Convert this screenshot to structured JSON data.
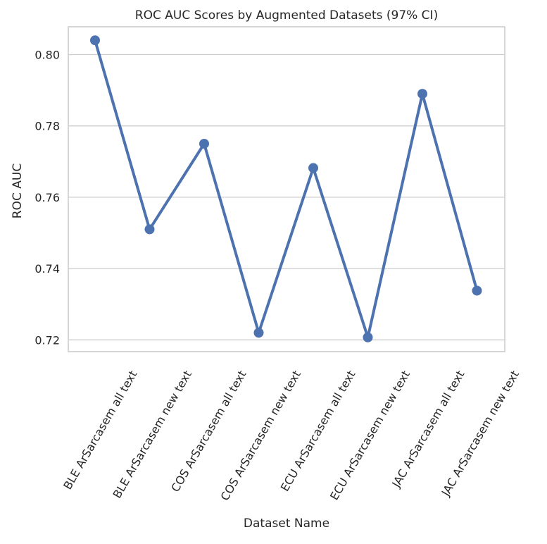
{
  "chart_data": {
    "type": "line",
    "title": "ROC AUC Scores by Augmented Datasets (97% CI)",
    "xlabel": "Dataset Name",
    "ylabel": "ROC AUC",
    "categories": [
      "BLE ArSarcasem  all text",
      "BLE ArSarcasem  new text",
      "COS ArSarcasem  all text",
      "COS ArSarcasem  new text",
      "ECU ArSarcasem  all text",
      "ECU ArSarcasem  new text",
      "JAC ArSarcasem  all text",
      "JAC ArSarcasem  new text"
    ],
    "series": [
      {
        "values": [
          0.804,
          0.751,
          0.775,
          0.722,
          0.7682,
          0.7207,
          0.789,
          0.7338
        ]
      }
    ],
    "yticks": [
      "0.72",
      "0.74",
      "0.76",
      "0.78",
      "0.80"
    ],
    "ytick_values": [
      0.72,
      0.74,
      0.76,
      0.78,
      0.8
    ],
    "ylim": [
      0.7167,
      0.8078
    ],
    "grid": "horizontal",
    "colors": {
      "series": "#4c72b0",
      "grid": "#cccccc",
      "text": "#262626"
    }
  }
}
